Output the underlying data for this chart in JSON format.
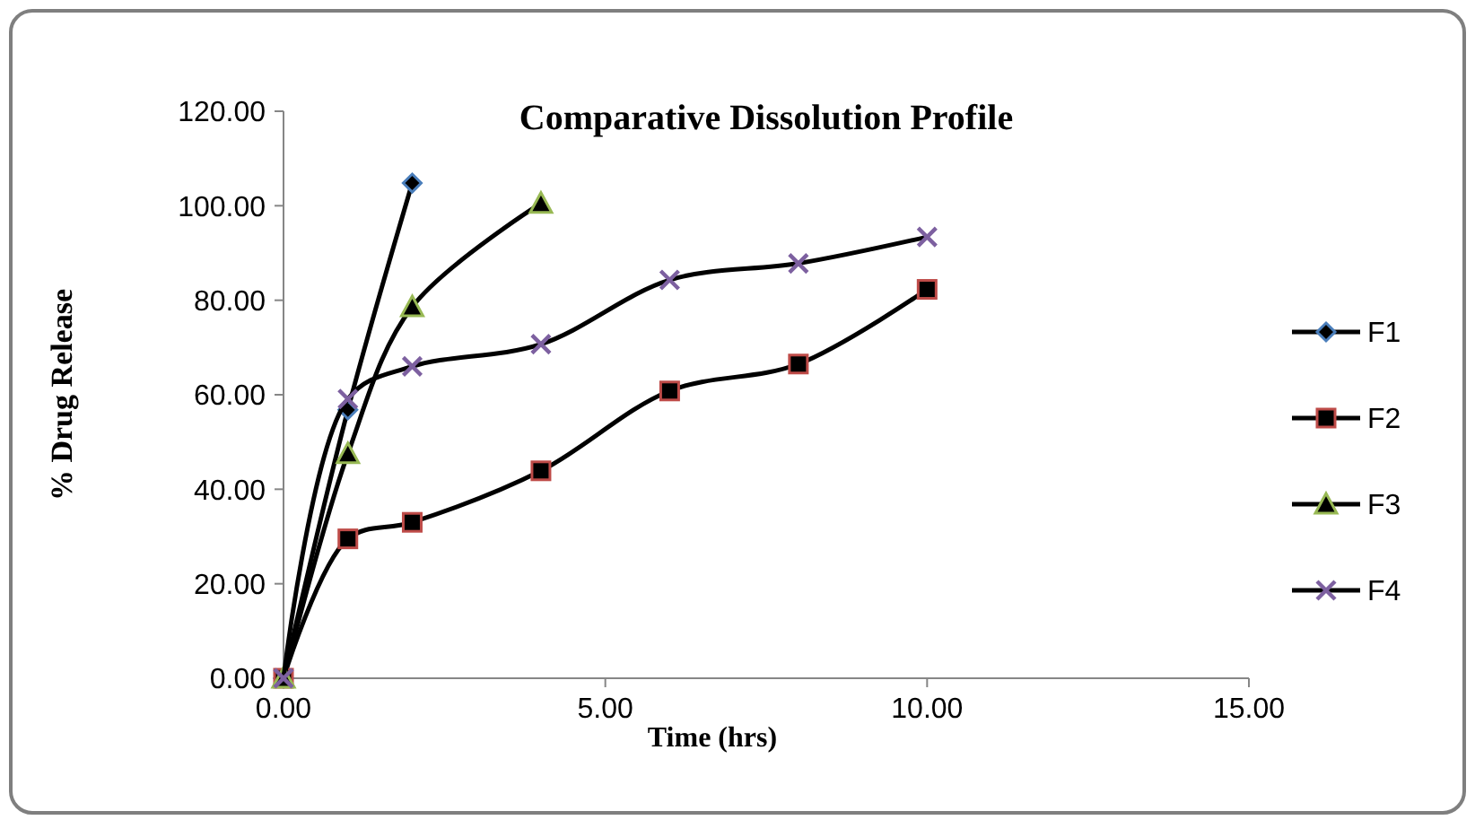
{
  "chart_data": {
    "type": "line",
    "title": "Comparative Dissolution Profile",
    "xlabel": "Time (hrs)",
    "ylabel": "% Drug Release",
    "xlim": [
      0,
      15
    ],
    "xticks": [
      {
        "value": 0,
        "label": "0.00"
      },
      {
        "value": 5,
        "label": "5.00"
      },
      {
        "value": 10,
        "label": "10.00"
      },
      {
        "value": 15,
        "label": "15.00"
      }
    ],
    "ylim": [
      0,
      120
    ],
    "yticks": [
      {
        "value": 0,
        "label": "0.00"
      },
      {
        "value": 20,
        "label": "20.00"
      },
      {
        "value": 40,
        "label": "40.00"
      },
      {
        "value": 60,
        "label": "60.00"
      },
      {
        "value": 80,
        "label": "80.00"
      },
      {
        "value": 100,
        "label": "100.00"
      },
      {
        "value": 120,
        "label": "120.00"
      }
    ],
    "grid": false,
    "legend": "right",
    "line_style": "solid",
    "series": [
      {
        "name": "F1",
        "color": "#4a7ebb",
        "marker": "diamond",
        "x": [
          0,
          1,
          2
        ],
        "values": [
          0,
          56.8,
          104.8
        ]
      },
      {
        "name": "F2",
        "color": "#be4b48",
        "marker": "square",
        "x": [
          0,
          1,
          2,
          4,
          6,
          8,
          10
        ],
        "values": [
          0,
          29.5,
          33.0,
          43.9,
          60.8,
          66.5,
          82.3
        ]
      },
      {
        "name": "F3",
        "color": "#98b954",
        "marker": "triangle",
        "x": [
          0,
          1,
          2,
          4
        ],
        "values": [
          0,
          47.5,
          78.6,
          100.5
        ]
      },
      {
        "name": "F4",
        "color": "#7d60a0",
        "marker": "cross",
        "x": [
          0,
          1,
          2,
          4,
          6,
          8,
          10
        ],
        "values": [
          0,
          59.1,
          66.0,
          70.7,
          84.3,
          87.8,
          93.4
        ]
      }
    ]
  }
}
